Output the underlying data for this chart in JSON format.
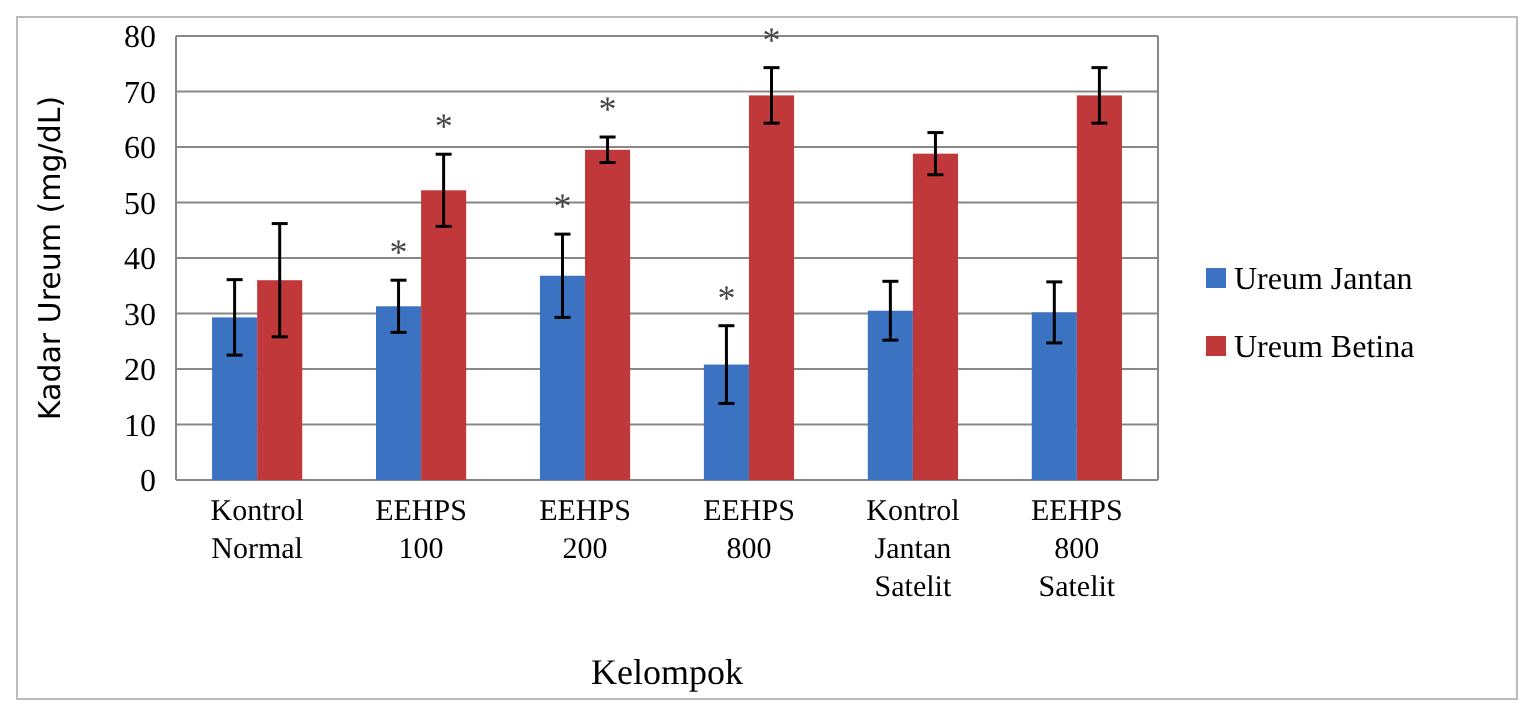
{
  "chart_data": {
    "type": "bar",
    "xlabel": "Kelompok",
    "ylabel": "Kadar Ureum (mg/dL)",
    "categories": [
      "Kontrol\nNormal",
      "EEHPS\n100",
      "EEHPS\n200",
      "EEHPS\n800",
      "Kontrol\nJantan\nSatelit",
      "EEHPS\n800\nSatelit"
    ],
    "series": [
      {
        "name": "Ureum Jantan",
        "color": "#3b73c2",
        "values": [
          29.3,
          31.3,
          36.8,
          20.8,
          30.5,
          30.2
        ],
        "errors": [
          6.8,
          4.7,
          7.5,
          7,
          5.3,
          5.5
        ]
      },
      {
        "name": "Ureum Betina",
        "color": "#c1383a",
        "values": [
          36,
          52.2,
          59.5,
          69.3,
          58.8,
          69.3
        ],
        "errors": [
          10.2,
          6.5,
          2.3,
          5,
          3.8,
          5
        ]
      }
    ],
    "ylim": [
      0,
      80
    ],
    "yticks": [
      0,
      10,
      20,
      30,
      40,
      50,
      60,
      70,
      80
    ],
    "grid": "y",
    "legend": "right",
    "annotations": [
      {
        "text": "*",
        "x": "EEHPS\n100",
        "y": 31.3
      },
      {
        "text": "*",
        "x": "EEHPS\n200",
        "y": 36.8
      },
      {
        "text": "*",
        "x": "EEHPS\n800",
        "y": 20.8
      },
      {
        "text": "*",
        "x": "EEHPS\n100",
        "y": 52.2
      },
      {
        "text": "*",
        "x": "EEHPS\n200",
        "y": 59.5
      },
      {
        "text": "*",
        "x": "EEHPS\n800",
        "y": 69.3
      }
    ]
  }
}
